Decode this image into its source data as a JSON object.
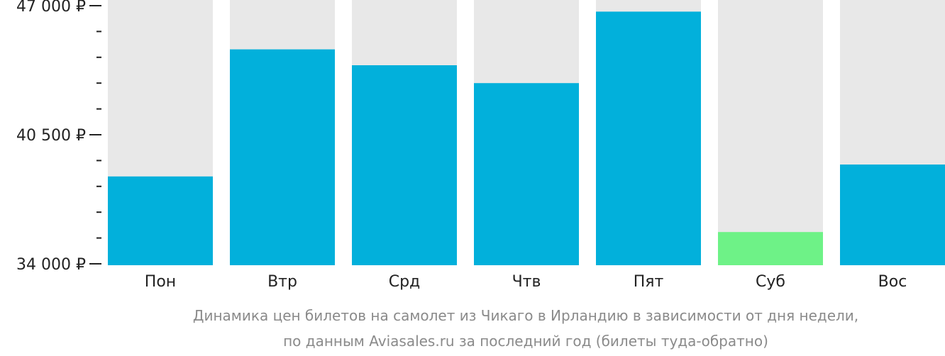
{
  "chart_data": {
    "type": "bar",
    "categories": [
      "Пон",
      "Втр",
      "Срд",
      "Чтв",
      "Пят",
      "Суб",
      "Вос"
    ],
    "values": [
      38400,
      44800,
      44000,
      43100,
      46700,
      35600,
      39000
    ],
    "ylim": [
      34000,
      47000
    ],
    "yticks": [
      {
        "value": 47000,
        "label": "47 000 ₽"
      },
      {
        "value": 40500,
        "label": "40 500 ₽"
      },
      {
        "value": 34000,
        "label": "34 000 ₽"
      }
    ],
    "minor_tick_step": 1300,
    "highlight_index": 5,
    "colors": {
      "bar": "#02b0db",
      "highlight": "#6ef287",
      "background_bar": "#e8e8e8",
      "axis": "#222222"
    },
    "caption": [
      "Динамика цен билетов на самолет из Чикаго в Ирландию в зависимости от дня недели,",
      "по данным Aviasales.ru за последний год (билеты туда-обратно)"
    ]
  }
}
